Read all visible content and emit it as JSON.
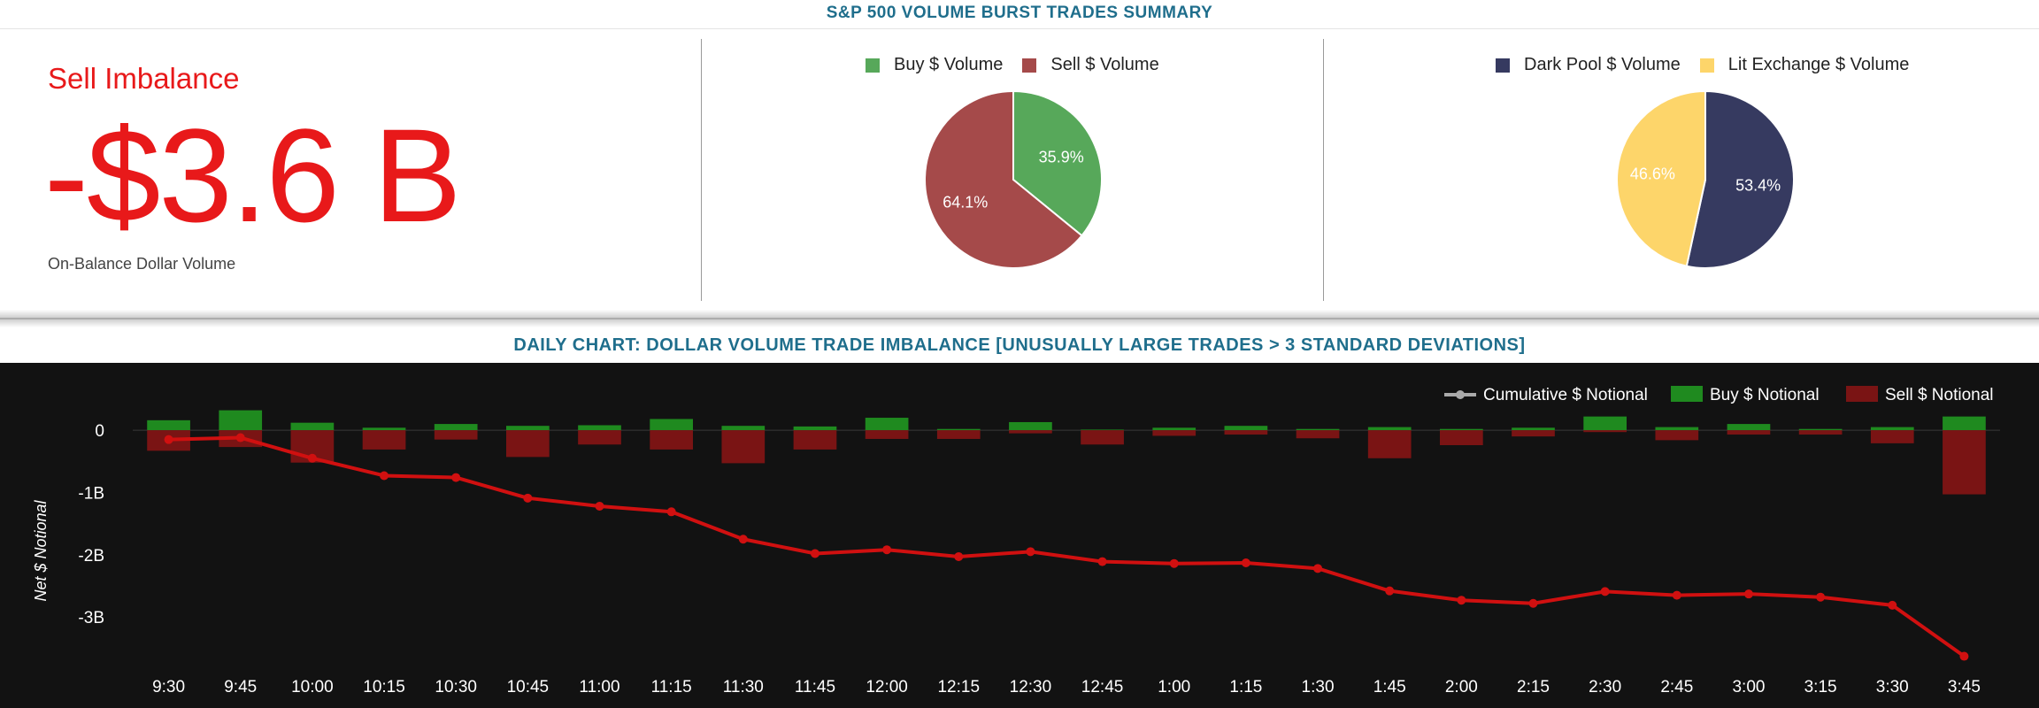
{
  "header": {
    "title": "S&P 500 VOLUME BURST TRADES SUMMARY"
  },
  "kpi": {
    "label": "Sell Imbalance",
    "value": "-$3.6 B",
    "subtitle": "On-Balance Dollar Volume",
    "color": "#e8191a"
  },
  "pie_buy_sell": {
    "legend": [
      {
        "label": "Buy $ Volume",
        "color": "#57a85a"
      },
      {
        "label": "Sell $ Volume",
        "color": "#a54a4a"
      }
    ],
    "slices": [
      {
        "label": "35.9%",
        "value": 35.9,
        "color": "#57a85a"
      },
      {
        "label": "64.1%",
        "value": 64.1,
        "color": "#a54a4a"
      }
    ]
  },
  "pie_venue": {
    "legend": [
      {
        "label": "Dark Pool $ Volume",
        "color": "#363a60"
      },
      {
        "label": "Lit Exchange $ Volume",
        "color": "#fdd56a"
      }
    ],
    "slices": [
      {
        "label": "53.4%",
        "value": 53.4,
        "color": "#363a60"
      },
      {
        "label": "46.6%",
        "value": 46.6,
        "color": "#fdd56a"
      }
    ]
  },
  "chart_title": "DAILY CHART: DOLLAR VOLUME TRADE IMBALANCE [UNUSUALLY LARGE TRADES > 3 STANDARD DEVIATIONS]",
  "chart_data": {
    "type": "bar",
    "ylabel": "Net $ Notional",
    "ylim": [
      -3.75,
      0.3
    ],
    "yticks": [
      {
        "value": 0,
        "label": "0"
      },
      {
        "value": -1,
        "label": "-1B"
      },
      {
        "value": -2,
        "label": "-2B"
      },
      {
        "value": -3,
        "label": "-3B"
      }
    ],
    "legend_position": "top-right",
    "categories": [
      "9:30",
      "9:45",
      "10:00",
      "10:15",
      "10:30",
      "10:45",
      "11:00",
      "11:15",
      "11:30",
      "11:45",
      "12:00",
      "12:15",
      "12:30",
      "12:45",
      "1:00",
      "1:15",
      "1:30",
      "1:45",
      "2:00",
      "2:15",
      "2:30",
      "2:45",
      "3:00",
      "3:15",
      "3:30",
      "3:45"
    ],
    "series": [
      {
        "name": "Cumulative $ Notional",
        "kind": "line",
        "color": "#d01010",
        "values": [
          -0.15,
          -0.12,
          -0.45,
          -0.73,
          -0.76,
          -1.09,
          -1.22,
          -1.31,
          -1.75,
          -1.98,
          -1.92,
          -2.03,
          -1.95,
          -2.11,
          -2.14,
          -2.13,
          -2.22,
          -2.58,
          -2.73,
          -2.78,
          -2.59,
          -2.65,
          -2.63,
          -2.68,
          -2.81,
          -3.63
        ]
      },
      {
        "name": "Buy $ Notional",
        "kind": "bar",
        "color": "#1f8a1f",
        "values": [
          0.16,
          0.32,
          0.12,
          0.04,
          0.1,
          0.07,
          0.08,
          0.18,
          0.07,
          0.06,
          0.2,
          0.02,
          0.13,
          0.01,
          0.04,
          0.07,
          0.02,
          0.05,
          0.02,
          0.04,
          0.22,
          0.05,
          0.1,
          0.02,
          0.05,
          0.22
        ]
      },
      {
        "name": "Sell $ Notional",
        "kind": "bar",
        "color": "#7a1414",
        "values": [
          -0.33,
          -0.27,
          -0.52,
          -0.31,
          -0.15,
          -0.43,
          -0.23,
          -0.31,
          -0.53,
          -0.31,
          -0.14,
          -0.14,
          -0.05,
          -0.23,
          -0.09,
          -0.07,
          -0.13,
          -0.45,
          -0.24,
          -0.1,
          -0.03,
          -0.16,
          -0.07,
          -0.07,
          -0.21,
          -1.03
        ]
      }
    ]
  }
}
